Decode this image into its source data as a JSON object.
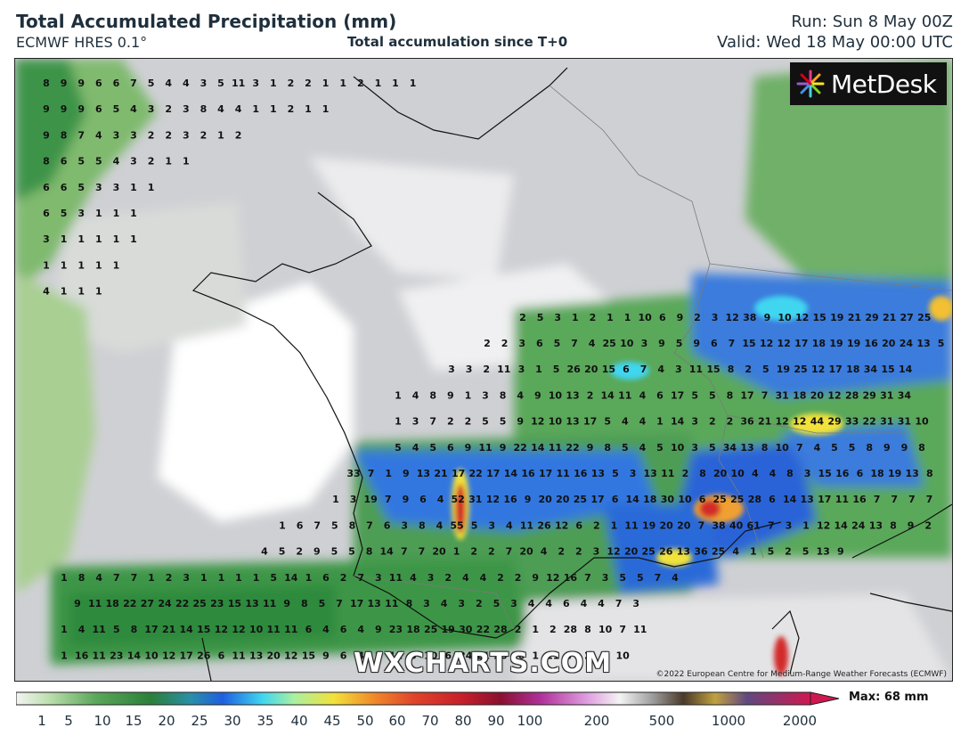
{
  "header": {
    "title": "Total Accumulated Precipitation (mm)",
    "model": "ECMWF HRES 0.1°",
    "subtitle": "Total accumulation since T+0",
    "run": "Run: Sun 8 May 00Z",
    "valid": "Valid: Wed 18 May 00:00 UTC"
  },
  "logo": {
    "text": "MetDesk",
    "icon": "metdesk-burst-icon"
  },
  "watermark": "WXCHARTS.COM",
  "copyright": "©2022 European Centre for Medium-Range Weather Forecasts (ECMWF)",
  "legend": {
    "ticks": [
      "1",
      "5",
      "10",
      "15",
      "20",
      "25",
      "30",
      "35",
      "40",
      "45",
      "50",
      "60",
      "70",
      "80",
      "90",
      "100",
      "200",
      "500",
      "1000",
      "2000"
    ],
    "max_label": "Max: 68 mm"
  },
  "colors": {
    "land": "#c8c8cc",
    "light": "#e6e6e8",
    "green1": "#a6d08a",
    "green2": "#5aa85a",
    "green3": "#2f8a3e",
    "blue": "#1e5fe0",
    "cyan": "#3fd6f0",
    "yellow": "#f2e23a",
    "orange": "#f08a2a",
    "red": "#c8202a"
  },
  "rows": [
    "8 9 9 6 6 7 5 4 4 3 5 11 3 1 2 2 1 1 2 1 1 1",
    "9 9 9 6 5 4 3 2 3 8 4 4 1 1 2 1 1",
    "9 8 7 4 3 3 2 2 3 2 1 2",
    "8 6 5 5 4 3 2 1 1",
    "6 6 5 3 3 1 1",
    "6 5 3 1 1 1",
    "3 1 1 1 1 1",
    "1 1 1 1 1",
    "4 1 1 1",
    "2 5 3 1 2 1 1 10 6 9 2 3 12 38 9 10 12 15 19 21 29 21 27 25 31",
    "2 2 3 6 5 7 4 25 10 3 9 5 9 6 7 15 12 12 17 18 19 19 16 20 24 13 5",
    "3 3 2 11 3 1 5 26 20 15 6 7 4 3 11 15 8 2 5 19 25 12 17 18 34 15 14",
    "1 4 8 9 1 3 8 4 9 10 13 2 14 11 4 6 17 5 5 8 17 7 31 18 20 12 28 29 31 34",
    "1 3 7 2 2 5 5 9 12 10 13 17 5 4 4 1 14 3 2 2 36 21 12 12 44 29 33 22 31 31 10",
    "5 4 5 6 9 11 9 22 14 11 22 9 8 5 4 5 10 3 5 34 13 8 10 7 4 5 5 8 9 9 8",
    "33 7 1 9 13 21 17 22 17 14 16 17 11 16 13 5 3 13 11 2 8 20 10 4 4 8 3 15 16 6 18 19 13 8",
    "1 3 19 7 9 6 4 52 31 12 16 9 20 20 25 17 6 14 18 30 10 6 25 25 28 6 14 13 17 11 16 7 7 7 7",
    "1 6 7 5 8 7 6 3 8 4 55 5 3 4 11 26 12 6 2 1 11 19 20 20 7 38 40 61 7 3 1 12 14 24 13 8 9 2",
    "4 5 2 9 5 5 8 14 7 7 20 1 2 2 7 20 4 2 2 3 12 20 25 26 13 36 25 4 1 5 2 5 13 9",
    "1 8 4 7 7 1 2 3 1 1 1 1 5 14 1 6 2 7 3 11 4 3 2 4 4 2 2 9 12 16 7 3 5 5 7 4",
    "9 11 18 22 27 24 22 25 23 15 13 11 9 8 5 7 17 13 11 8 3 4 3 2 5 3 4 4 6 4 4 7 3",
    "1 4 11 5 8 17 21 14 15 12 12 10 11 11 6 4 6 4 9 23 18 25 19 30 22 28 2 1 2 28 8 10 7 11",
    "1 16 11 23 14 10 12 17 26 6 11 13 20 12 15 9 6 4 2 11 5 10 6 24 21 20 16 1 11 7 2 7 10"
  ]
}
